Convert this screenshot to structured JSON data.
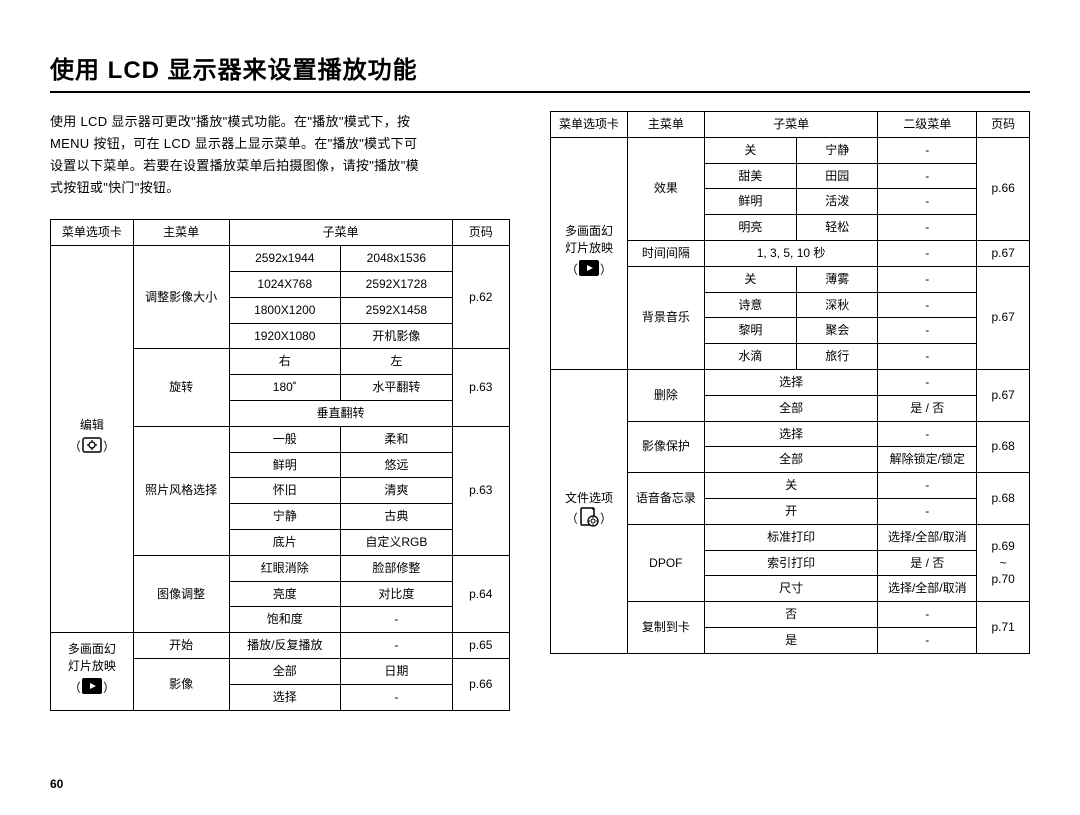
{
  "page_number": "60",
  "title": "使用 LCD 显示器来设置播放功能",
  "intro_lines": [
    "使用 LCD 显示器可更改\"播放\"模式功能。在\"播放\"模式下，按",
    "MENU 按钮，可在 LCD 显示器上显示菜单。在\"播放\"模式下可",
    "设置以下菜单。若要在设置播放菜单后拍摄图像，请按\"播放\"模",
    "式按钮或\"快门\"按钮。"
  ],
  "left_table": {
    "headers": [
      "菜单选项卡",
      "主菜单",
      "子菜单",
      "页码"
    ],
    "groups": [
      {
        "tab": {
          "label": "编辑",
          "icon": "edit-gear-icon"
        },
        "sections": [
          {
            "main": "调整影像大小",
            "sub_rows": [
              [
                "2592x1944",
                "2048x1536"
              ],
              [
                "1024X768",
                "2592X1728"
              ],
              [
                "1800X1200",
                "2592X1458"
              ],
              [
                "1920X1080",
                "开机影像"
              ]
            ],
            "page": "p.62"
          },
          {
            "main": "旋转",
            "sub_rows": [
              [
                "右",
                "左"
              ],
              [
                "180˚",
                "水平翻转"
              ],
              [
                "垂直翻转",
                ""
              ]
            ],
            "page": "p.63"
          },
          {
            "main": "照片风格选择",
            "sub_rows": [
              [
                "一般",
                "柔和"
              ],
              [
                "鲜明",
                "悠远"
              ],
              [
                "怀旧",
                "清爽"
              ],
              [
                "宁静",
                "古典"
              ],
              [
                "底片",
                "自定义RGB"
              ]
            ],
            "page": "p.63"
          },
          {
            "main": "图像调整",
            "sub_rows": [
              [
                "红眼消除",
                "脸部修整"
              ],
              [
                "亮度",
                "对比度"
              ],
              [
                "饱和度",
                "-"
              ]
            ],
            "page": "p.64"
          }
        ]
      },
      {
        "tab": {
          "label": "多画面幻\n灯片放映",
          "icon": "slideshow-icon"
        },
        "sections": [
          {
            "main": "开始",
            "sub_rows": [
              [
                "播放/反复播放",
                "-"
              ]
            ],
            "page": "p.65"
          },
          {
            "main": "影像",
            "sub_rows": [
              [
                "全部",
                "日期"
              ],
              [
                "选择",
                "-"
              ]
            ],
            "page": "p.66"
          }
        ]
      }
    ]
  },
  "right_table": {
    "headers": [
      "菜单选项卡",
      "主菜单",
      "子菜单",
      "二级菜单",
      "页码"
    ],
    "groups": [
      {
        "tab": {
          "label": "多画面幻\n灯片放映",
          "icon": "slideshow-icon"
        },
        "sections": [
          {
            "main": "效果",
            "rows": [
              [
                "关",
                "宁静",
                "-"
              ],
              [
                "甜美",
                "田园",
                "-"
              ],
              [
                "鲜明",
                "活泼",
                "-"
              ],
              [
                "明亮",
                "轻松",
                "-"
              ]
            ],
            "page": "p.66"
          },
          {
            "main": "时间间隔",
            "rows": [
              [
                "1, 3, 5, 10 秒",
                "-"
              ]
            ],
            "page": "p.67",
            "merge_sub": true
          },
          {
            "main": "背景音乐",
            "rows": [
              [
                "关",
                "薄雾",
                "-"
              ],
              [
                "诗意",
                "深秋",
                "-"
              ],
              [
                "黎明",
                "聚会",
                "-"
              ],
              [
                "水滴",
                "旅行",
                "-"
              ]
            ],
            "page": "p.67"
          }
        ]
      },
      {
        "tab": {
          "label": "文件选项",
          "icon": "file-options-icon"
        },
        "sections": [
          {
            "main": "删除",
            "rows": [
              [
                "选择",
                "-"
              ],
              [
                "全部",
                "是 / 否"
              ]
            ],
            "page": "p.67",
            "merge_sub": true
          },
          {
            "main": "影像保护",
            "rows": [
              [
                "选择",
                "-"
              ],
              [
                "全部",
                "解除锁定/锁定"
              ]
            ],
            "page": "p.68",
            "merge_sub": true
          },
          {
            "main": "语音备忘录",
            "rows": [
              [
                "关",
                "-"
              ],
              [
                "开",
                "-"
              ]
            ],
            "page": "p.68",
            "merge_sub": true
          },
          {
            "main": "DPOF",
            "rows": [
              [
                "标准打印",
                "选择/全部/取消"
              ],
              [
                "索引打印",
                "是 / 否"
              ],
              [
                "尺寸",
                "选择/全部/取消"
              ]
            ],
            "page": "p.69\n~\np.70",
            "merge_sub": true
          },
          {
            "main": "复制到卡",
            "rows": [
              [
                "否",
                "-"
              ],
              [
                "是",
                "-"
              ]
            ],
            "page": "p.71",
            "merge_sub": true
          }
        ]
      }
    ]
  }
}
